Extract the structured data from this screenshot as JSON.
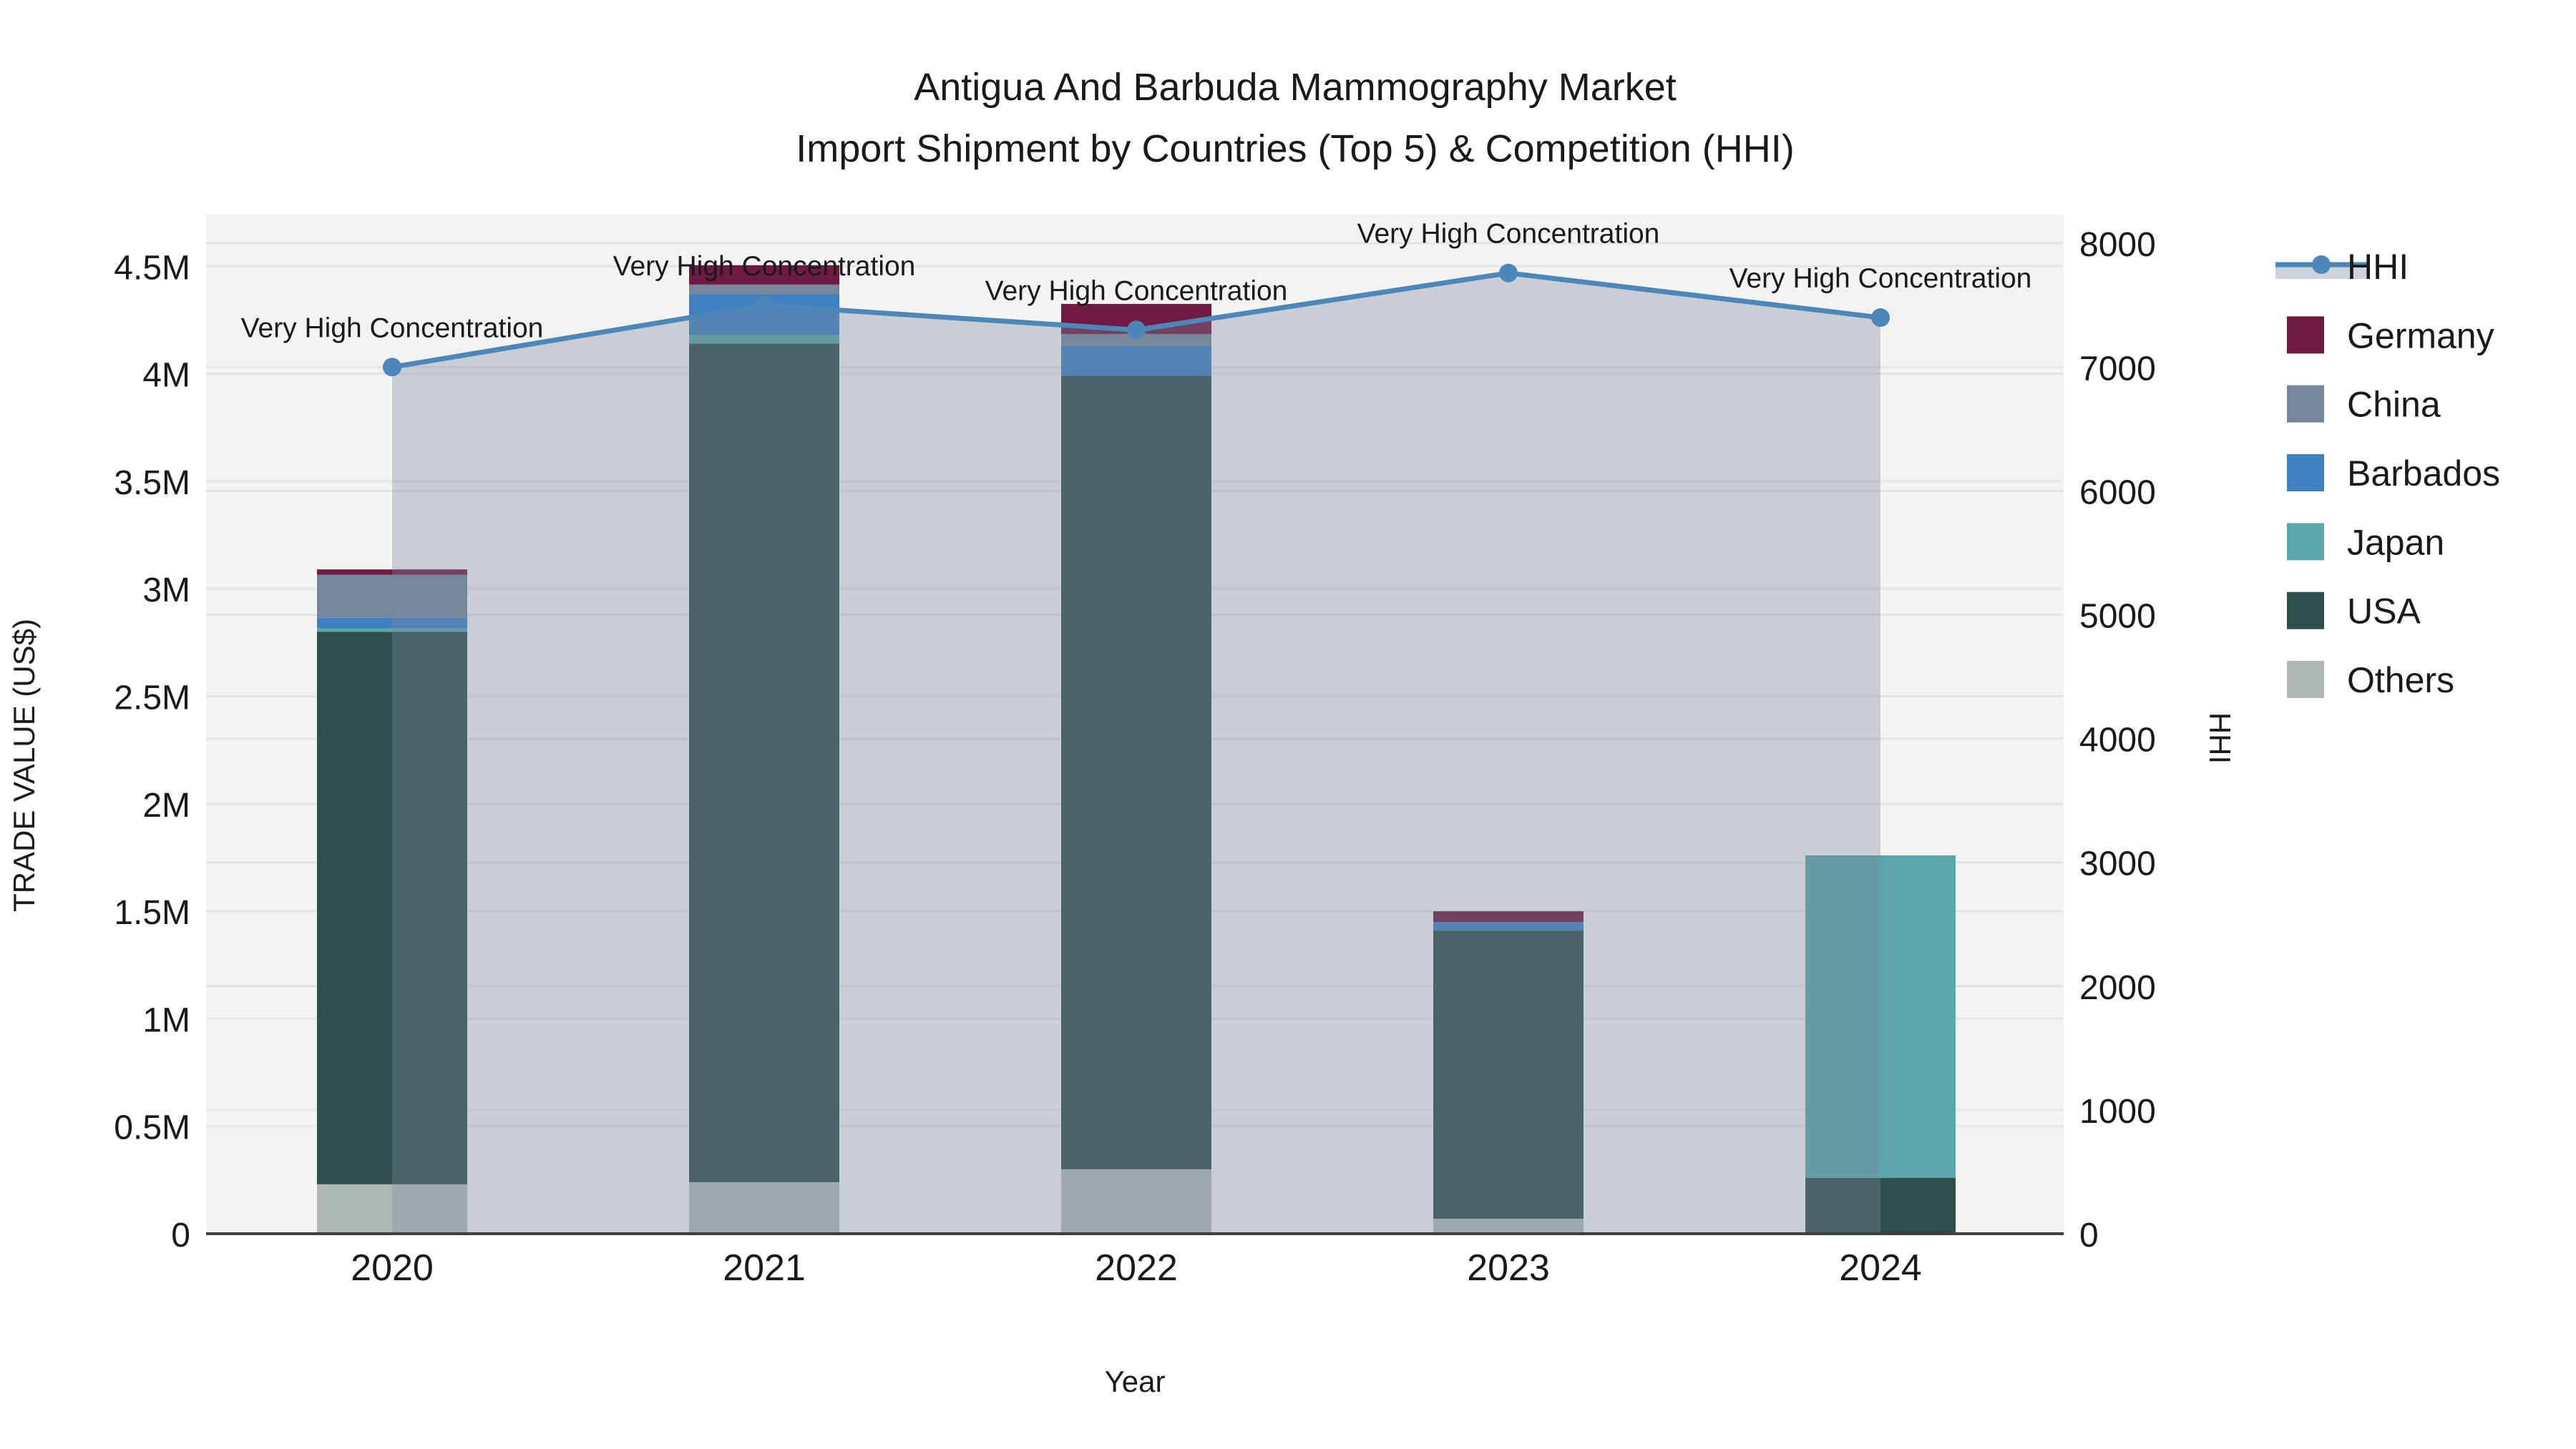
{
  "title": {
    "line1": "Antigua And Barbuda Mammography Market",
    "line2": "Import Shipment by Countries (Top 5) & Competition (HHI)"
  },
  "axes": {
    "x_title": "Year",
    "y_left_title": "TRADE VALUE (US$)",
    "y_right_title": "HHI",
    "y_left_tick_labels": [
      "0",
      "0.5M",
      "1M",
      "1.5M",
      "2M",
      "2.5M",
      "3M",
      "3.5M",
      "4M",
      "4.5M"
    ],
    "y_right_tick_labels": [
      "0",
      "1000",
      "2000",
      "3000",
      "4000",
      "5000",
      "6000",
      "7000",
      "8000"
    ]
  },
  "chart_data": {
    "type": "combo",
    "bar_type": "stacked-bar",
    "line_type": "line-with-area-fill",
    "categories": [
      "2020",
      "2021",
      "2022",
      "2023",
      "2024"
    ],
    "values_unit": "bar values in USD millions (left axis); HHI index points (right axis)",
    "series": [
      {
        "name": "Others",
        "type": "bar",
        "color": "#b0b8b6",
        "values": [
          0.23,
          0.24,
          0.3,
          0.07,
          0
        ]
      },
      {
        "name": "USA",
        "type": "bar",
        "color": "#2d4e4b",
        "values": [
          2.57,
          3.9,
          3.69,
          1.34,
          0.26
        ]
      },
      {
        "name": "Japan",
        "type": "bar",
        "color": "#5ca7ab",
        "values": [
          0.015,
          0.04,
          0,
          0,
          1.5
        ]
      },
      {
        "name": "Barbados",
        "type": "bar",
        "color": "#3e80c0",
        "values": [
          0.05,
          0.19,
          0.14,
          0.04,
          0
        ]
      },
      {
        "name": "China",
        "type": "bar",
        "color": "#76879b",
        "values": [
          0.2,
          0.045,
          0.055,
          0,
          0
        ]
      },
      {
        "name": "Germany",
        "type": "bar",
        "color": "#6e1a41",
        "values": [
          0.025,
          0.09,
          0.14,
          0.05,
          0
        ]
      },
      {
        "name": "HHI",
        "type": "line",
        "color": "#4d86b8",
        "values": [
          7000,
          7500,
          7300,
          7760,
          7400
        ]
      }
    ],
    "stack_order_bottom_to_top": [
      "Others",
      "USA",
      "Japan",
      "Barbados",
      "China",
      "Germany"
    ],
    "annotations": [
      "Very High Concentration",
      "Very High Concentration",
      "Very High Concentration",
      "Very High Concentration",
      "Very High Concentration"
    ],
    "ylim_left_millions": [
      0,
      4.5
    ],
    "ylim_right_hhi": [
      0,
      8000
    ],
    "grid": true,
    "legend_position": "right"
  },
  "legend": {
    "items": [
      {
        "label": "HHI",
        "swatch": "hhi"
      },
      {
        "label": "Germany",
        "swatch": "#6e1a41"
      },
      {
        "label": "China",
        "swatch": "#76879b"
      },
      {
        "label": "Barbados",
        "swatch": "#3e80c0"
      },
      {
        "label": "Japan",
        "swatch": "#5ca7ab"
      },
      {
        "label": "USA",
        "swatch": "#2d4e4b"
      },
      {
        "label": "Others",
        "swatch": "#b0b8b6"
      }
    ]
  },
  "colors": {
    "hhi_line": "#4d86b8",
    "area_fill": "rgba(125,138,155,0.36)",
    "hhi_area_swatch": "#ccd3dd",
    "plot_bg": "#f3f4f2",
    "grid": "#e4e6e4",
    "axis_line": "#3f3f3f",
    "text": "#1a1a1a"
  }
}
